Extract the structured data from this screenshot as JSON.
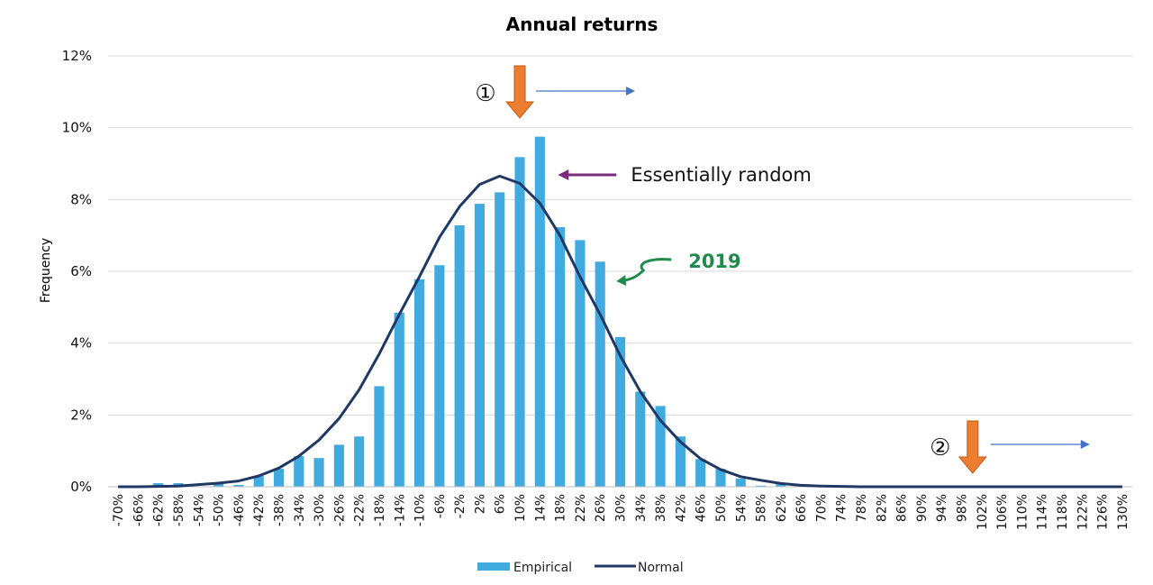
{
  "chart_data": {
    "type": "bar",
    "title": "Annual returns",
    "ylabel": "Frequency",
    "xlabel": "",
    "ylim": [
      0,
      12
    ],
    "yticks": [
      "0%",
      "2%",
      "4%",
      "6%",
      "8%",
      "10%",
      "12%"
    ],
    "ytick_values": [
      0,
      2,
      4,
      6,
      8,
      10,
      12
    ],
    "categories": [
      "-70%",
      "-66%",
      "-62%",
      "-58%",
      "-54%",
      "-50%",
      "-46%",
      "-42%",
      "-38%",
      "-34%",
      "-30%",
      "-26%",
      "-22%",
      "-18%",
      "-14%",
      "-10%",
      "-6%",
      "-2%",
      "2%",
      "6%",
      "10%",
      "14%",
      "18%",
      "22%",
      "26%",
      "30%",
      "34%",
      "38%",
      "42%",
      "46%",
      "50%",
      "54%",
      "58%",
      "62%",
      "66%",
      "70%",
      "74%",
      "78%",
      "82%",
      "86%",
      "90%",
      "94%",
      "98%",
      "102%",
      "106%",
      "110%",
      "114%",
      "118%",
      "122%",
      "126%",
      "130%"
    ],
    "series": [
      {
        "name": "Empirical",
        "kind": "bar",
        "color": "#41ABE0",
        "values": [
          0,
          0,
          0.1,
          0.1,
          0,
          0.1,
          0.05,
          0.3,
          0.5,
          0.85,
          0.8,
          1.17,
          1.4,
          2.8,
          4.85,
          5.78,
          6.17,
          7.28,
          7.88,
          8.2,
          9.18,
          9.75,
          7.23,
          6.87,
          6.27,
          4.17,
          2.65,
          2.25,
          1.4,
          0.77,
          0.5,
          0.23,
          0.03,
          0.1,
          0,
          0,
          0,
          0,
          0,
          0,
          0,
          0,
          0,
          0,
          0,
          0,
          0,
          0,
          0,
          0,
          0
        ]
      },
      {
        "name": "Normal",
        "kind": "line",
        "color": "#1F3864",
        "values": [
          0,
          0,
          0.01,
          0.02,
          0.06,
          0.1,
          0.16,
          0.3,
          0.52,
          0.85,
          1.3,
          1.9,
          2.7,
          3.7,
          4.8,
          5.85,
          6.95,
          7.8,
          8.42,
          8.65,
          8.45,
          7.9,
          7.0,
          5.85,
          4.8,
          3.65,
          2.65,
          1.85,
          1.25,
          0.78,
          0.48,
          0.28,
          0.18,
          0.09,
          0.04,
          0.02,
          0.01,
          0,
          0,
          0,
          0,
          0,
          0,
          0,
          0,
          0,
          0,
          0,
          0,
          0,
          0
        ]
      }
    ],
    "legend": {
      "position": "bottom-center",
      "items": [
        "Empirical",
        "Normal"
      ]
    },
    "grid": true,
    "annotations": [
      {
        "id": "marker-1",
        "label": "①",
        "x_category": "10%",
        "color": "#ED7D31"
      },
      {
        "id": "marker-2",
        "label": "②",
        "x_category": "102%",
        "color": "#ED7D31"
      },
      {
        "id": "essentially-random",
        "text": "Essentially random",
        "x_category": "14%",
        "color": "#7B2D7B"
      },
      {
        "id": "year-2019",
        "text": "2019",
        "x_category": "26%",
        "color": "#1F8A4C"
      }
    ]
  }
}
